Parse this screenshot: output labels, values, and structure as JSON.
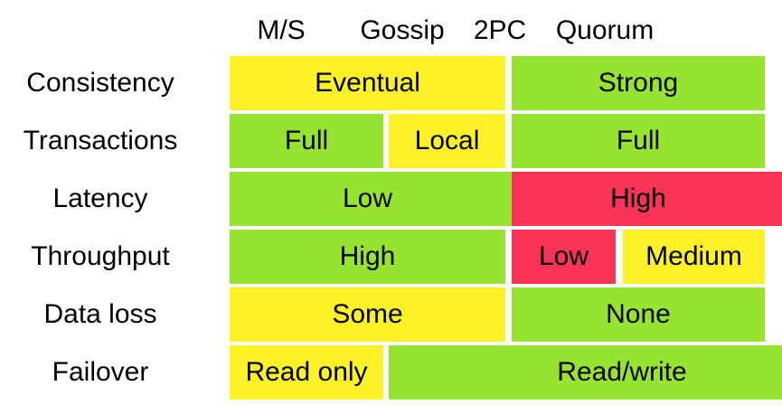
{
  "colors": {
    "yellow": "#FCF126",
    "green": "#97E430",
    "red": "#FA3358"
  },
  "chart_data": {
    "type": "table",
    "columns": [
      "M/S",
      "Gossip",
      "2PC",
      "Quorum"
    ],
    "rows": [
      {
        "label": "Consistency",
        "cells": [
          {
            "text": "Eventual",
            "cols": [
              "M/S",
              "Gossip"
            ],
            "color": "yellow"
          },
          {
            "text": "Strong",
            "cols": [
              "2PC",
              "Quorum"
            ],
            "color": "green"
          }
        ]
      },
      {
        "label": "Transactions",
        "cells": [
          {
            "text": "Full",
            "cols": [
              "M/S"
            ],
            "color": "green"
          },
          {
            "text": "Local",
            "cols": [
              "Gossip"
            ],
            "color": "yellow"
          },
          {
            "text": "Full",
            "cols": [
              "2PC",
              "Quorum"
            ],
            "color": "green"
          }
        ]
      },
      {
        "label": "Latency",
        "cells": [
          {
            "text": "Low",
            "cols": [
              "M/S",
              "Gossip"
            ],
            "color": "green"
          },
          {
            "text": "High",
            "cols": [
              "2PC",
              "Quorum"
            ],
            "color": "red"
          }
        ]
      },
      {
        "label": "Throughput",
        "cells": [
          {
            "text": "High",
            "cols": [
              "M/S",
              "Gossip"
            ],
            "color": "green"
          },
          {
            "text": "Low",
            "cols": [
              "2PC"
            ],
            "color": "red"
          },
          {
            "text": "Medium",
            "cols": [
              "Quorum"
            ],
            "color": "yellow"
          }
        ]
      },
      {
        "label": "Data loss",
        "cells": [
          {
            "text": "Some",
            "cols": [
              "M/S",
              "Gossip"
            ],
            "color": "yellow"
          },
          {
            "text": "None",
            "cols": [
              "2PC",
              "Quorum"
            ],
            "color": "green"
          }
        ]
      },
      {
        "label": "Failover",
        "cells": [
          {
            "text": "Read only",
            "cols": [
              "M/S"
            ],
            "color": "yellow"
          },
          {
            "text": "Read/write",
            "cols": [
              "Gossip",
              "2PC",
              "Quorum"
            ],
            "color": "green"
          }
        ]
      }
    ]
  }
}
